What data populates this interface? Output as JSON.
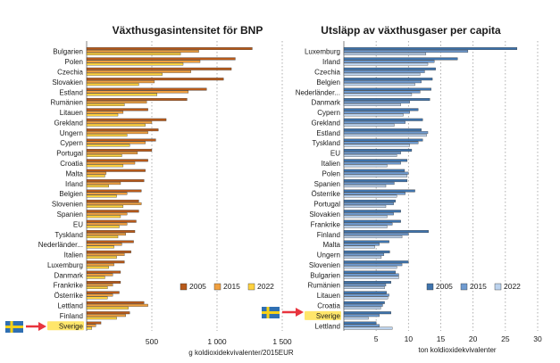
{
  "chart_data": [
    {
      "type": "bar",
      "orientation": "horizontal",
      "title": "Växthusgasintensitet för BNP",
      "xlabel": "g koldioxidekvivalenter/2015EUR",
      "xlim": [
        0,
        1500
      ],
      "xticks": [
        500,
        1000,
        1500
      ],
      "xtick_labels": [
        "500",
        "1 000",
        "1 500"
      ],
      "grid": "vertical-dotted",
      "legend_position": "bottom-right",
      "highlight": "Sverige",
      "categories": [
        "Bulgarien",
        "Polen",
        "Czechia",
        "Slovakien",
        "Estland",
        "Rumänien",
        "Litauen",
        "Grekland",
        "Ungern",
        "Cypern",
        "Portugal",
        "Croatia",
        "Malta",
        "Irland",
        "Belgien",
        "Slovenien",
        "Spanien",
        "EU",
        "Tyskland",
        "Nederländer...",
        "Italien",
        "Luxemburg",
        "Danmark",
        "Frankrike",
        "Österrike",
        "Lettland",
        "Finland",
        "Sverige"
      ],
      "series": [
        {
          "name": "2005",
          "color": "#b85a1a",
          "values": [
            1270,
            1140,
            1110,
            1050,
            920,
            770,
            470,
            610,
            550,
            530,
            500,
            470,
            450,
            440,
            420,
            400,
            400,
            380,
            370,
            360,
            340,
            290,
            260,
            260,
            250,
            440,
            330,
            110
          ]
        },
        {
          "name": "2015",
          "color": "#f0a040",
          "values": [
            860,
            870,
            800,
            520,
            780,
            460,
            280,
            500,
            470,
            450,
            390,
            370,
            150,
            260,
            310,
            420,
            310,
            310,
            300,
            270,
            290,
            210,
            200,
            200,
            200,
            470,
            300,
            70
          ]
        },
        {
          "name": "2022",
          "color": "#ffd23f",
          "values": [
            720,
            740,
            580,
            400,
            540,
            290,
            240,
            450,
            310,
            330,
            270,
            280,
            140,
            170,
            230,
            280,
            260,
            250,
            240,
            210,
            230,
            170,
            140,
            160,
            160,
            320,
            230,
            40
          ]
        }
      ]
    },
    {
      "type": "bar",
      "orientation": "horizontal",
      "title": "Utsläpp av växthusgaser per capita",
      "xlabel": "ton koldioxidekvivalenter",
      "xlim": [
        0,
        30
      ],
      "xticks": [
        5,
        10,
        15,
        20,
        25,
        30
      ],
      "xtick_labels": [
        "5",
        "10",
        "15",
        "20",
        "25",
        "30"
      ],
      "grid": "vertical-dotted",
      "legend_position": "bottom-right",
      "highlight": "Sverige",
      "categories": [
        "Luxemburg",
        "Irland",
        "Czechia",
        "Belgien",
        "Nederländer...",
        "Danmark",
        "Cypern",
        "Grekland",
        "Estland",
        "Tyskland",
        "EU",
        "Italien",
        "Polen",
        "Spanien",
        "Österrike",
        "Portugal",
        "Slovakien",
        "Frankrike",
        "Finland",
        "Malta",
        "Ungern",
        "Slovenien",
        "Bulgarien",
        "Rumänien",
        "Litauen",
        "Croatia",
        "Sverige",
        "Lettland"
      ],
      "series": [
        {
          "name": "2005",
          "color": "#3f74ad",
          "values": [
            26.8,
            17.6,
            14.2,
            13.7,
            13.5,
            13.3,
            11.5,
            12.2,
            12.0,
            12.2,
            10.5,
            9.8,
            9.4,
            9.8,
            11.0,
            8.0,
            8.8,
            8.8,
            13.1,
            7.0,
            7.1,
            10.0,
            8.0,
            7.3,
            6.6,
            6.3,
            7.3,
            5.0
          ]
        },
        {
          "name": "2015",
          "color": "#6f9bd0",
          "values": [
            19.2,
            14.0,
            12.5,
            12.0,
            11.8,
            10.2,
            10.2,
            9.5,
            13.0,
            11.5,
            8.8,
            8.8,
            10.0,
            7.8,
            9.5,
            7.7,
            7.7,
            7.5,
            10.0,
            5.5,
            6.2,
            9.0,
            8.5,
            6.5,
            7.0,
            6.0,
            5.5,
            5.5
          ]
        },
        {
          "name": "2022",
          "color": "#bcd3ee",
          "values": [
            12.7,
            13.0,
            11.8,
            11.0,
            10.5,
            8.8,
            9.2,
            7.8,
            12.8,
            10.2,
            8.2,
            6.7,
            9.8,
            6.5,
            8.2,
            6.5,
            6.7,
            6.7,
            9.0,
            4.8,
            5.8,
            8.2,
            8.5,
            6.3,
            6.8,
            5.7,
            3.8,
            7.5
          ]
        }
      ]
    }
  ],
  "annotation": {
    "label": "Sverige",
    "flag_colors": {
      "blue": "#2f6fb2",
      "yellow": "#f7d117"
    },
    "arrow_color": "#e8343e"
  }
}
